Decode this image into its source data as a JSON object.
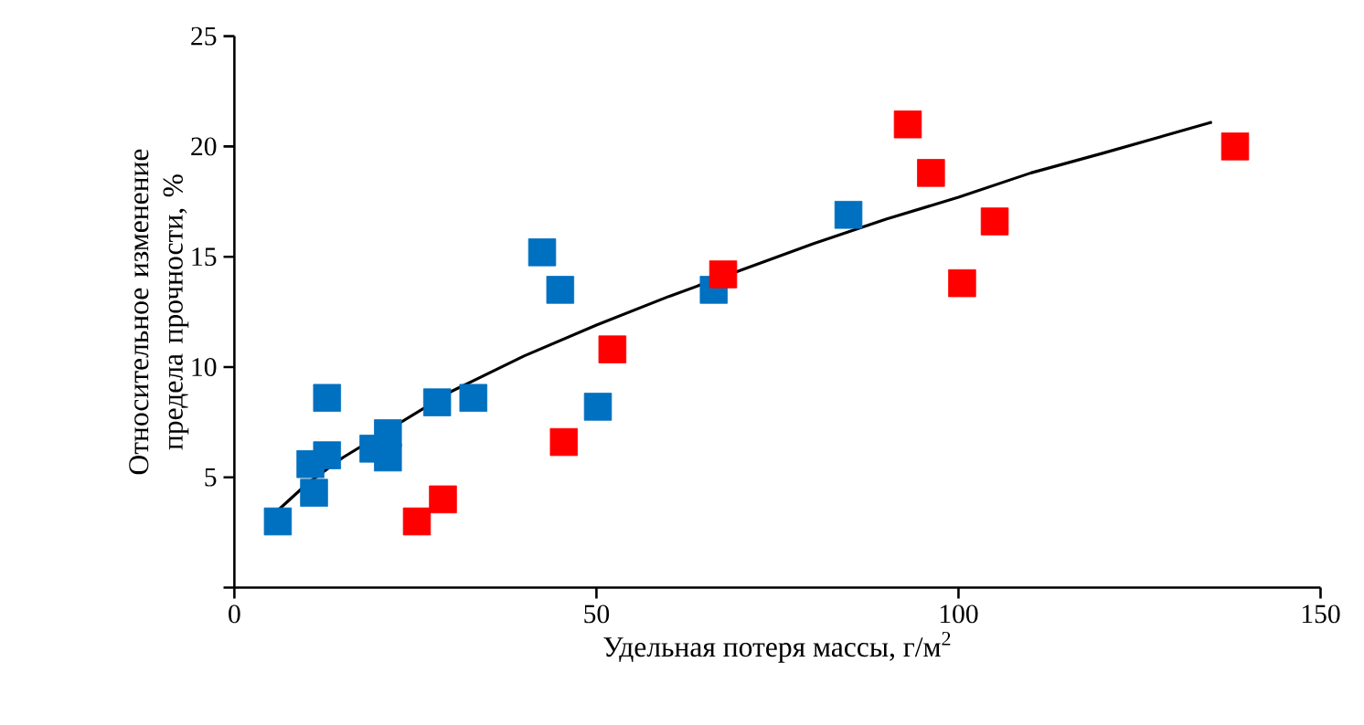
{
  "chart_data": {
    "type": "scatter",
    "xlabel": "Удельная потеря массы, г/м$^{2}$",
    "ylabel": "Относительное изменение предела прочности, %",
    "xlim": [
      0,
      150
    ],
    "ylim": [
      0,
      25
    ],
    "xticks": [
      0,
      50,
      100,
      150
    ],
    "yticks": [
      {
        "value": 0,
        "label": null
      },
      5,
      10,
      15,
      20,
      25
    ],
    "marker": "square",
    "grid": false,
    "series": [
      {
        "color": "#0070c0",
        "x": [
          6,
          10.5,
          11,
          12.8,
          12.8,
          19.2,
          21.2,
          21.2,
          28,
          33,
          42.5,
          45,
          50.2,
          66.2,
          84.8
        ],
        "values": [
          3.0,
          5.6,
          4.3,
          6.0,
          8.6,
          6.3,
          7.0,
          5.9,
          8.4,
          8.6,
          15.2,
          13.5,
          8.2,
          13.5,
          16.9
        ]
      },
      {
        "color": "#ff0000",
        "x": [
          25.2,
          28.8,
          45.5,
          52.2,
          67.5,
          93,
          96.2,
          100.5,
          105,
          138.2
        ],
        "values": [
          3.0,
          4.0,
          6.6,
          10.8,
          14.2,
          21.0,
          18.8,
          13.8,
          16.6,
          20.0
        ]
      },
      {
        "type": "line",
        "color": "#000000",
        "marker": "none",
        "x": [
          6,
          10,
          15,
          30,
          40,
          50,
          60,
          70,
          80,
          90,
          100,
          110,
          120,
          135
        ],
        "values": [
          3.5,
          4.7,
          5.9,
          8.9,
          10.5,
          11.9,
          13.2,
          14.4,
          15.6,
          16.7,
          17.7,
          18.8,
          19.7,
          21.1
        ]
      }
    ]
  }
}
